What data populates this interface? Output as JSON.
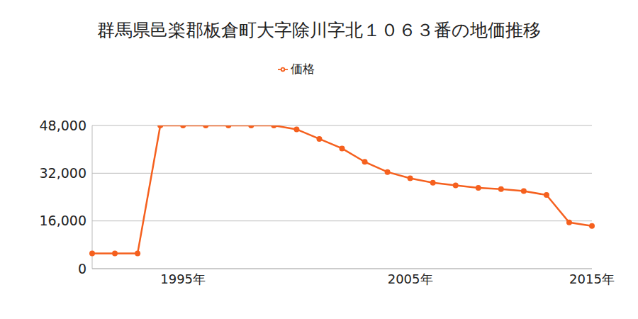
{
  "chart_data": {
    "type": "line",
    "title": "群馬県邑楽郡板倉町大字除川字北１０６３番の地価推移",
    "categories": [
      null,
      null,
      null,
      null,
      "1995年",
      null,
      null,
      null,
      null,
      null,
      null,
      null,
      null,
      null,
      "2005年",
      null,
      null,
      null,
      null,
      null,
      null,
      null,
      "2015年"
    ],
    "series": [
      {
        "name": "価格",
        "color": "#f5601e",
        "marker": "circle",
        "values": [
          5100,
          5100,
          5100,
          48000,
          48000,
          48000,
          48000,
          48000,
          48000,
          46700,
          43500,
          40300,
          35800,
          32400,
          30300,
          28800,
          27900,
          27100,
          26700,
          26000,
          24700,
          15500,
          14300
        ]
      }
    ],
    "ylim": [
      0,
      48000
    ],
    "yticks": [
      0,
      {
        "value": 16000,
        "label": "16,000"
      },
      {
        "value": 32000,
        "label": "32,000"
      },
      {
        "value": 48000,
        "label": "48,000"
      }
    ],
    "grid": true,
    "legend": "top"
  }
}
